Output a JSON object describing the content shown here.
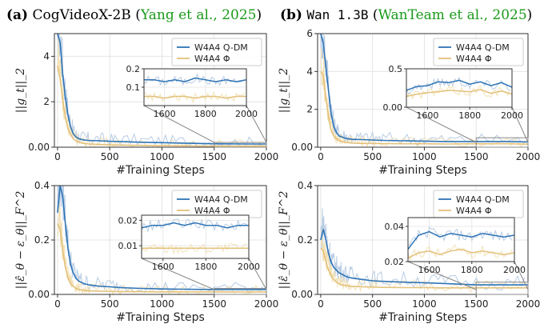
{
  "titles": {
    "a": {
      "letter": "(a)",
      "name": "CogVideoX-2B",
      "open": " (",
      "cite": "Yang et al., 2025",
      "close": ")"
    },
    "b": {
      "letter": "(b)",
      "name": "Wan 1.3B",
      "open": " (",
      "cite": "WanTeam et al., 2025",
      "close": ")"
    }
  },
  "colors": {
    "qdm": "#2f74b5",
    "phi": "#e3c17a",
    "qdm_raw": "#b8cce4",
    "phi_raw": "#f2e2b9"
  },
  "chart_data": [
    {
      "id": "a_top",
      "type": "line",
      "xlabel": "#Training Steps",
      "ylabel": "||g_t||_2",
      "xlim": [
        -30,
        2000
      ],
      "ylim": [
        0,
        5
      ],
      "xticks": [
        0,
        500,
        1000,
        1500,
        2000
      ],
      "yticks": [
        0,
        2,
        4
      ],
      "grid": true,
      "legend_position": "top-right",
      "series": [
        {
          "name": "W4A4 Q-DM",
          "x": [
            0,
            25,
            50,
            75,
            100,
            125,
            150,
            175,
            200,
            250,
            300,
            400,
            500,
            600,
            800,
            1000,
            1200,
            1500,
            1800,
            2000
          ],
          "y": [
            5.0,
            4.6,
            3.2,
            2.2,
            1.4,
            0.9,
            0.6,
            0.45,
            0.38,
            0.32,
            0.3,
            0.28,
            0.26,
            0.25,
            0.22,
            0.2,
            0.18,
            0.15,
            0.14,
            0.14
          ]
        },
        {
          "name": "W4A4 Φ",
          "x": [
            0,
            25,
            50,
            75,
            100,
            125,
            150,
            175,
            200,
            250,
            300,
            400,
            500,
            600,
            800,
            1000,
            1200,
            1500,
            1800,
            2000
          ],
          "y": [
            3.6,
            3.0,
            2.1,
            1.3,
            0.8,
            0.55,
            0.38,
            0.28,
            0.22,
            0.17,
            0.14,
            0.12,
            0.1,
            0.09,
            0.08,
            0.07,
            0.06,
            0.05,
            0.05,
            0.05
          ]
        }
      ],
      "inset": {
        "xlim": [
          1500,
          2000
        ],
        "ylim": [
          0,
          0.2
        ],
        "xticks": [
          1600,
          1800,
          2000
        ],
        "yticks": [
          0.1,
          0.2
        ],
        "series": [
          {
            "x": [
              1500,
              1550,
              1600,
              1650,
              1700,
              1750,
              1800,
              1850,
              1900,
              1950,
              2000
            ],
            "y": [
              0.14,
              0.14,
              0.13,
              0.14,
              0.13,
              0.15,
              0.14,
              0.13,
              0.14,
              0.13,
              0.14
            ]
          },
          {
            "x": [
              1500,
              1550,
              1600,
              1650,
              1700,
              1750,
              1800,
              1850,
              1900,
              1950,
              2000
            ],
            "y": [
              0.05,
              0.05,
              0.04,
              0.05,
              0.05,
              0.04,
              0.05,
              0.05,
              0.04,
              0.05,
              0.05
            ]
          }
        ]
      }
    },
    {
      "id": "b_top",
      "type": "line",
      "xlabel": "#Training Steps",
      "ylabel": "||g_t||_2",
      "xlim": [
        -30,
        2000
      ],
      "ylim": [
        0,
        6
      ],
      "xticks": [
        0,
        500,
        1000,
        1500,
        2000
      ],
      "yticks": [
        0,
        2,
        4,
        6
      ],
      "grid": true,
      "legend_position": "top-right",
      "series": [
        {
          "name": "W4A4 Q-DM",
          "x": [
            0,
            25,
            50,
            75,
            100,
            125,
            150,
            175,
            200,
            250,
            300,
            400,
            500,
            600,
            800,
            1000,
            1200,
            1500,
            1800,
            2000
          ],
          "y": [
            6.0,
            5.5,
            4.2,
            3.0,
            1.8,
            1.1,
            0.8,
            0.6,
            0.55,
            0.45,
            0.42,
            0.4,
            0.38,
            0.36,
            0.34,
            0.32,
            0.3,
            0.3,
            0.3,
            0.28
          ]
        },
        {
          "name": "W4A4 Φ",
          "x": [
            0,
            25,
            50,
            75,
            100,
            125,
            150,
            175,
            200,
            250,
            300,
            400,
            500,
            600,
            800,
            1000,
            1200,
            1500,
            1800,
            2000
          ],
          "y": [
            4.0,
            3.8,
            2.6,
            1.6,
            0.9,
            0.6,
            0.45,
            0.35,
            0.3,
            0.25,
            0.22,
            0.2,
            0.2,
            0.19,
            0.18,
            0.18,
            0.17,
            0.18,
            0.18,
            0.16
          ]
        }
      ],
      "inset": {
        "xlim": [
          1500,
          2000
        ],
        "ylim": [
          0,
          0.5
        ],
        "xticks": [
          1600,
          1800,
          2000
        ],
        "yticks": [
          0.0,
          0.5
        ],
        "series": [
          {
            "x": [
              1500,
              1550,
              1600,
              1650,
              1700,
              1750,
              1800,
              1850,
              1900,
              1950,
              2000
            ],
            "y": [
              0.22,
              0.27,
              0.28,
              0.33,
              0.32,
              0.35,
              0.3,
              0.33,
              0.28,
              0.32,
              0.26
            ]
          },
          {
            "x": [
              1500,
              1550,
              1600,
              1650,
              1700,
              1750,
              1800,
              1850,
              1900,
              1950,
              2000
            ],
            "y": [
              0.14,
              0.17,
              0.19,
              0.2,
              0.22,
              0.21,
              0.2,
              0.23,
              0.18,
              0.21,
              0.17
            ]
          }
        ]
      }
    },
    {
      "id": "a_bot",
      "type": "line",
      "xlabel": "#Training Steps",
      "ylabel": "||ε̂_θ − ε_θ||_F^2",
      "xlim": [
        -30,
        2000
      ],
      "ylim": [
        0,
        0.4
      ],
      "xticks": [
        0,
        500,
        1000,
        1500,
        2000
      ],
      "yticks": [
        0.0,
        0.2,
        0.4
      ],
      "grid": true,
      "legend_position": "top-right",
      "series": [
        {
          "name": "W4A4 Q-DM",
          "x": [
            0,
            25,
            50,
            75,
            100,
            125,
            150,
            175,
            200,
            250,
            300,
            400,
            500,
            600,
            800,
            1000,
            1200,
            1500,
            1800,
            2000
          ],
          "y": [
            0.3,
            0.4,
            0.36,
            0.26,
            0.17,
            0.11,
            0.08,
            0.06,
            0.05,
            0.04,
            0.035,
            0.03,
            0.028,
            0.025,
            0.022,
            0.02,
            0.019,
            0.018,
            0.018,
            0.018
          ]
        },
        {
          "name": "W4A4 Φ",
          "x": [
            0,
            25,
            50,
            75,
            100,
            125,
            150,
            175,
            200,
            250,
            300,
            400,
            500,
            600,
            800,
            1000,
            1200,
            1500,
            1800,
            2000
          ],
          "y": [
            0.26,
            0.24,
            0.16,
            0.1,
            0.06,
            0.04,
            0.03,
            0.022,
            0.018,
            0.015,
            0.013,
            0.012,
            0.011,
            0.01,
            0.01,
            0.009,
            0.009,
            0.009,
            0.009,
            0.009
          ]
        }
      ],
      "inset": {
        "xlim": [
          1500,
          2000
        ],
        "ylim": [
          0.005,
          0.022
        ],
        "xticks": [
          1600,
          1800,
          2000
        ],
        "yticks": [
          0.01,
          0.02
        ],
        "series": [
          {
            "x": [
              1500,
              1550,
              1600,
              1650,
              1700,
              1750,
              1800,
              1850,
              1900,
              1950,
              2000
            ],
            "y": [
              0.017,
              0.018,
              0.018,
              0.019,
              0.018,
              0.019,
              0.018,
              0.018,
              0.017,
              0.018,
              0.018
            ]
          },
          {
            "x": [
              1500,
              1550,
              1600,
              1650,
              1700,
              1750,
              1800,
              1850,
              1900,
              1950,
              2000
            ],
            "y": [
              0.009,
              0.009,
              0.009,
              0.009,
              0.009,
              0.009,
              0.009,
              0.009,
              0.009,
              0.009,
              0.009
            ]
          }
        ]
      }
    },
    {
      "id": "b_bot",
      "type": "line",
      "xlabel": "#Training Steps",
      "ylabel": "||ε̂_θ − ε_θ||_F^2",
      "xlim": [
        -30,
        2000
      ],
      "ylim": [
        0,
        0.4
      ],
      "xticks": [
        0,
        500,
        1000,
        1500,
        2000
      ],
      "yticks": [
        0.0,
        0.2,
        0.4
      ],
      "grid": true,
      "legend_position": "top-right",
      "series": [
        {
          "name": "W4A4 Q-DM",
          "x": [
            0,
            25,
            50,
            75,
            100,
            125,
            150,
            175,
            200,
            250,
            300,
            400,
            500,
            600,
            800,
            1000,
            1200,
            1500,
            1800,
            2000
          ],
          "y": [
            0.2,
            0.24,
            0.2,
            0.15,
            0.12,
            0.1,
            0.09,
            0.08,
            0.075,
            0.065,
            0.06,
            0.055,
            0.05,
            0.048,
            0.045,
            0.043,
            0.04,
            0.035,
            0.035,
            0.035
          ]
        },
        {
          "name": "W4A4 Φ",
          "x": [
            0,
            25,
            50,
            75,
            100,
            125,
            150,
            175,
            200,
            250,
            300,
            400,
            500,
            600,
            800,
            1000,
            1200,
            1500,
            1800,
            2000
          ],
          "y": [
            0.17,
            0.16,
            0.12,
            0.09,
            0.07,
            0.055,
            0.045,
            0.04,
            0.035,
            0.032,
            0.03,
            0.028,
            0.027,
            0.026,
            0.025,
            0.025,
            0.024,
            0.024,
            0.024,
            0.024
          ]
        }
      ],
      "inset": {
        "xlim": [
          1500,
          2000
        ],
        "ylim": [
          0.02,
          0.045
        ],
        "xticks": [
          1600,
          1800,
          2000
        ],
        "yticks": [
          0.02,
          0.04
        ],
        "series": [
          {
            "x": [
              1500,
              1550,
              1600,
              1650,
              1700,
              1750,
              1800,
              1850,
              1900,
              1950,
              2000
            ],
            "y": [
              0.027,
              0.035,
              0.037,
              0.034,
              0.036,
              0.035,
              0.034,
              0.036,
              0.035,
              0.034,
              0.035
            ]
          },
          {
            "x": [
              1500,
              1550,
              1600,
              1650,
              1700,
              1750,
              1800,
              1850,
              1900,
              1950,
              2000
            ],
            "y": [
              0.022,
              0.025,
              0.026,
              0.024,
              0.026,
              0.027,
              0.025,
              0.026,
              0.025,
              0.024,
              0.025
            ]
          }
        ]
      }
    }
  ]
}
